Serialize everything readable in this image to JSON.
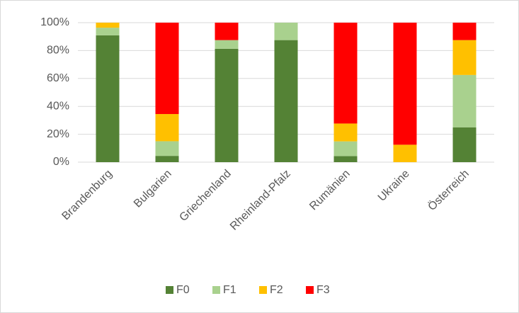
{
  "chart_data": {
    "type": "stacked_bar",
    "categories": [
      "Brandenburg",
      "Bulgarien",
      "Griechenland",
      "Rheinland-Pfalz",
      "Rumänien",
      "Ukraine",
      "Österreich"
    ],
    "series": [
      {
        "name": "F0",
        "color": "#548235",
        "values": [
          90.9,
          4.5,
          81.3,
          87.5,
          4.3,
          0,
          25
        ]
      },
      {
        "name": "F1",
        "color": "#a9d18e",
        "values": [
          5.5,
          10.5,
          6.2,
          12.5,
          10.6,
          0,
          37.5
        ]
      },
      {
        "name": "F2",
        "color": "#ffc000",
        "values": [
          3.6,
          19.5,
          0,
          0,
          12.8,
          12.5,
          25
        ]
      },
      {
        "name": "F3",
        "color": "#ff0000",
        "values": [
          0,
          65.5,
          12.5,
          0,
          72.3,
          87.5,
          12.5
        ]
      }
    ],
    "ylim": [
      0,
      100
    ],
    "yticks": [
      {
        "value": 0,
        "label": "0%"
      },
      {
        "value": 20,
        "label": "20%"
      },
      {
        "value": 40,
        "label": "40%"
      },
      {
        "value": 60,
        "label": "60%"
      },
      {
        "value": 80,
        "label": "80%"
      },
      {
        "value": 100,
        "label": "100%"
      }
    ],
    "grid": true,
    "legend": "bottom"
  }
}
